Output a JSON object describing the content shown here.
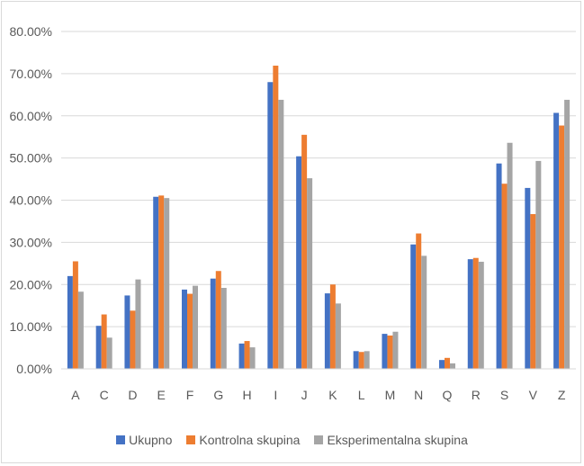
{
  "chart_data": {
    "type": "bar",
    "title": "",
    "xlabel": "",
    "ylabel": "",
    "ylim": [
      0,
      80
    ],
    "yticks": [
      "0.00%",
      "10.00%",
      "20.00%",
      "30.00%",
      "40.00%",
      "50.00%",
      "60.00%",
      "70.00%",
      "80.00%"
    ],
    "grid": true,
    "legend_position": "bottom",
    "categories": [
      "A",
      "C",
      "D",
      "E",
      "F",
      "G",
      "H",
      "I",
      "J",
      "K",
      "L",
      "M",
      "N",
      "Q",
      "R",
      "S",
      "V",
      "Z"
    ],
    "series": [
      {
        "name": "Ukupno",
        "color": "#4472c4",
        "values": [
          22.0,
          10.2,
          17.4,
          40.8,
          18.8,
          21.4,
          6.0,
          68.0,
          50.4,
          17.9,
          4.2,
          8.3,
          29.5,
          2.1,
          26.0,
          48.7,
          42.9,
          60.7
        ]
      },
      {
        "name": "Kontrolna skupina",
        "color": "#ed7d31",
        "values": [
          25.5,
          12.9,
          13.8,
          41.1,
          17.8,
          23.2,
          6.6,
          71.9,
          55.5,
          20.0,
          4.0,
          7.9,
          32.1,
          2.6,
          26.3,
          43.9,
          36.7,
          57.7
        ]
      },
      {
        "name": "Eksperimentalna skupina",
        "color": "#a5a5a5",
        "values": [
          18.3,
          7.4,
          21.2,
          40.5,
          19.7,
          19.2,
          5.1,
          63.8,
          45.2,
          15.5,
          4.2,
          8.8,
          26.8,
          1.3,
          25.4,
          53.6,
          49.3,
          63.8
        ]
      }
    ]
  }
}
